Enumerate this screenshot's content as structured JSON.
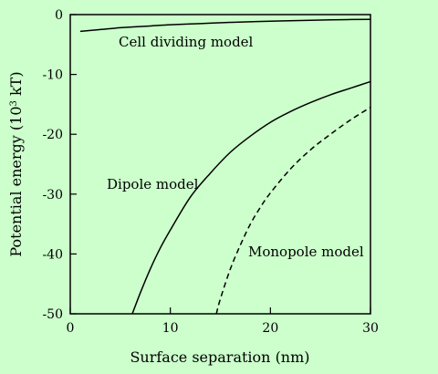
{
  "chart_data": {
    "type": "line",
    "xlabel": "Surface separation (nm)",
    "ylabel_main": "Potential energy (10",
    "ylabel_sup": "3",
    "ylabel_unit": " kT)",
    "xlim": [
      0,
      30
    ],
    "ylim": [
      -50,
      0
    ],
    "xticks": [
      0,
      10,
      20,
      30
    ],
    "yticks": [
      0,
      -10,
      -20,
      -30,
      -40,
      -50
    ],
    "grid": false,
    "series": [
      {
        "name": "Cell dividing model",
        "style": "solid",
        "x": [
          1,
          3,
          5,
          8,
          10,
          13,
          16,
          20,
          24,
          27,
          30
        ],
        "y": [
          -2.8,
          -2.5,
          -2.2,
          -1.9,
          -1.7,
          -1.5,
          -1.3,
          -1.1,
          -0.95,
          -0.85,
          -0.8
        ]
      },
      {
        "name": "Dipole model",
        "style": "solid",
        "x": [
          6.2,
          7,
          8,
          9,
          10,
          12,
          14,
          16,
          18,
          20,
          22,
          24,
          26,
          28,
          30
        ],
        "y": [
          -50,
          -46.5,
          -42.5,
          -39,
          -36,
          -30.5,
          -26.5,
          -23,
          -20.3,
          -18,
          -16.2,
          -14.7,
          -13.4,
          -12.3,
          -11.2
        ]
      },
      {
        "name": "Monopole model",
        "style": "dashed",
        "x": [
          14.6,
          15,
          16,
          17,
          18,
          19,
          20,
          22,
          24,
          26,
          28,
          30
        ],
        "y": [
          -50,
          -47.5,
          -42.5,
          -38.5,
          -35,
          -32.2,
          -29.8,
          -25.8,
          -22.6,
          -20,
          -17.6,
          -15.5
        ]
      }
    ]
  }
}
